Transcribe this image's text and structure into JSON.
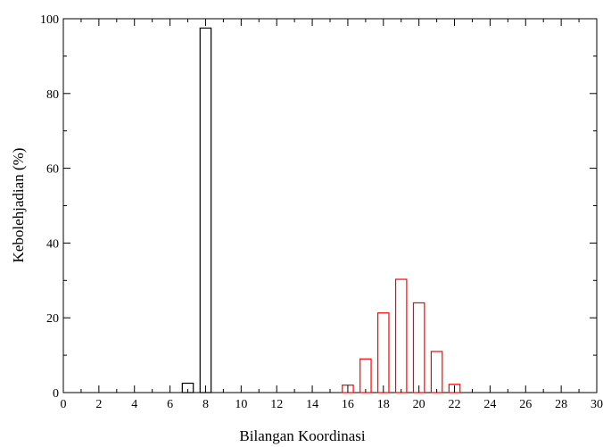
{
  "chart_data": {
    "type": "bar",
    "title": "",
    "xlabel": "Bilangan Koordinasi",
    "ylabel": "Kebolehjadian (%)",
    "xlim": [
      0,
      30
    ],
    "ylim": [
      0,
      100
    ],
    "x_ticks": [
      0,
      2,
      4,
      6,
      8,
      10,
      12,
      14,
      16,
      18,
      20,
      22,
      24,
      26,
      28,
      30
    ],
    "y_ticks": [
      0,
      20,
      40,
      60,
      80,
      100
    ],
    "grid": false,
    "series": [
      {
        "color": "#000000",
        "x": [
          7,
          8
        ],
        "values": [
          2.5,
          97.5
        ]
      },
      {
        "color": "#ff0000",
        "x": [
          16,
          17,
          18,
          19,
          20,
          21,
          22
        ],
        "values": [
          2,
          9,
          21.3,
          30.3,
          24,
          11,
          2.2
        ]
      }
    ]
  }
}
